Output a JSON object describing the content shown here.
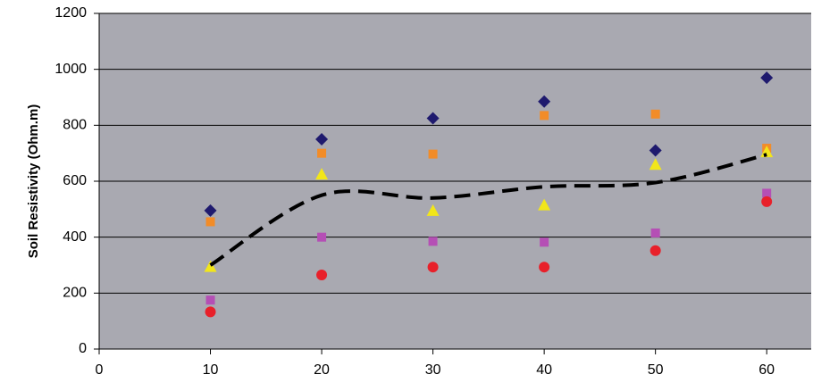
{
  "chart_data": {
    "type": "scatter",
    "y_label": "Soil Resistivity (Ohm.m)",
    "x": [
      10,
      20,
      30,
      40,
      50,
      60
    ],
    "xlim": [
      0,
      64
    ],
    "xticks": [
      0,
      10,
      20,
      30,
      40,
      50,
      60
    ],
    "ylim": [
      0,
      1200
    ],
    "yticks": [
      0,
      200,
      400,
      600,
      800,
      1000,
      1200
    ],
    "grid": true,
    "background": "#a9a9b1",
    "series": [
      {
        "marker": "diamond",
        "color": "#1f1a6e",
        "values": [
          495,
          750,
          825,
          885,
          710,
          970
        ]
      },
      {
        "marker": "square",
        "color": "#f28c28",
        "values": [
          455,
          700,
          697,
          835,
          840,
          718
        ]
      },
      {
        "marker": "triangle",
        "color": "#f2e61a",
        "values": [
          295,
          625,
          495,
          515,
          660,
          705
        ]
      },
      {
        "marker": "square",
        "color": "#b54fb5",
        "values": [
          175,
          400,
          385,
          382,
          415,
          557
        ]
      },
      {
        "marker": "circle",
        "color": "#e8202a",
        "values": [
          133,
          265,
          293,
          293,
          352,
          527
        ]
      },
      {
        "line": "dashed",
        "color": "#000000",
        "values": [
          300,
          550,
          540,
          580,
          595,
          695
        ]
      }
    ]
  }
}
